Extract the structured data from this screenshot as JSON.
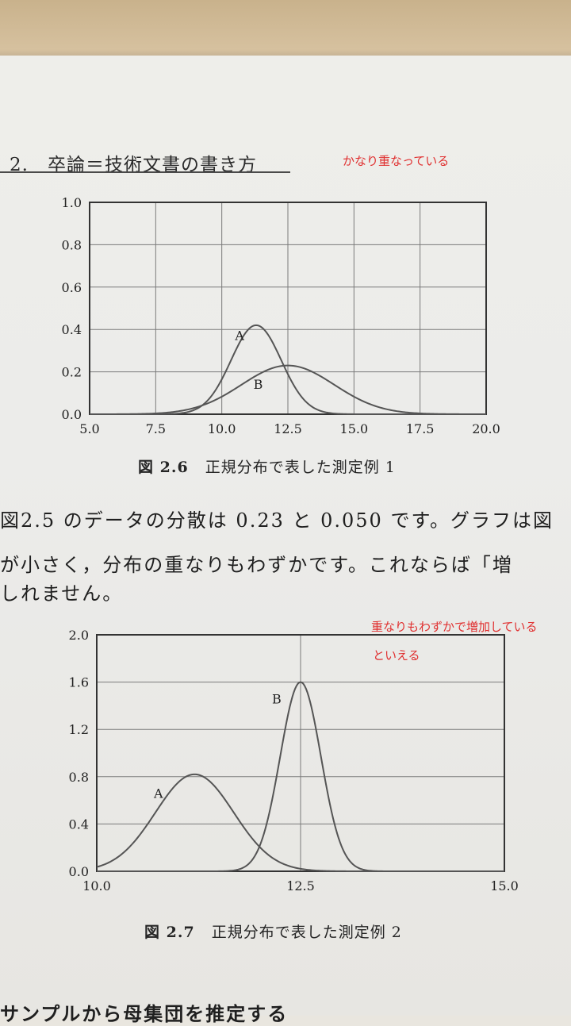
{
  "header": {
    "title": "2.　卒論＝技術文書の書き方"
  },
  "notes": {
    "note1": "かなり重なっている",
    "note2_line1": "重なりもわずかで増加している",
    "note2_line2": "といえる"
  },
  "captions": {
    "fig1_label": "図 2.6",
    "fig1_text": "正規分布で表した測定例 1",
    "fig2_label": "図 2.7",
    "fig2_text": "正規分布で表した測定例 2"
  },
  "body": {
    "line1": "図2.5 のデータの分散は 0.23 と 0.050 です。グラフは図",
    "line2": "が小さく，分布の重なりもわずかです。これならば「増",
    "line3": "しれません。",
    "bottom_heading": "サンプルから母集団を推定する"
  },
  "chart_data": [
    {
      "type": "line",
      "title": "",
      "xlabel": "",
      "ylabel": "",
      "xlim": [
        5.0,
        20.0
      ],
      "ylim": [
        0.0,
        1.0
      ],
      "xticks": [
        "5.0",
        "7.5",
        "10.0",
        "12.5",
        "15.0",
        "17.5",
        "20.0"
      ],
      "yticks": [
        "0.0",
        "0.2",
        "0.4",
        "0.6",
        "0.8",
        "1.0"
      ],
      "grid": true,
      "series": [
        {
          "name": "A",
          "label_x": 10.5,
          "label_y": 0.35,
          "mean": 11.3,
          "sd": 0.95,
          "peak": 0.42
        },
        {
          "name": "B",
          "label_x": 11.2,
          "label_y": 0.12,
          "mean": 12.5,
          "sd": 1.75,
          "peak": 0.23
        }
      ]
    },
    {
      "type": "line",
      "title": "",
      "xlabel": "",
      "ylabel": "",
      "xlim": [
        10.0,
        15.0
      ],
      "ylim": [
        0.0,
        2.0
      ],
      "xticks": [
        "10.0",
        "12.5",
        "15.0"
      ],
      "yticks": [
        "0.0",
        "0.4",
        "0.8",
        "1.2",
        "1.6",
        "2.0"
      ],
      "grid": true,
      "series": [
        {
          "name": "A",
          "label_x": 10.7,
          "label_y": 0.62,
          "mean": 11.2,
          "sd": 0.48,
          "peak": 0.82
        },
        {
          "name": "B",
          "label_x": 12.15,
          "label_y": 1.42,
          "mean": 12.5,
          "sd": 0.25,
          "peak": 1.6
        }
      ]
    }
  ]
}
